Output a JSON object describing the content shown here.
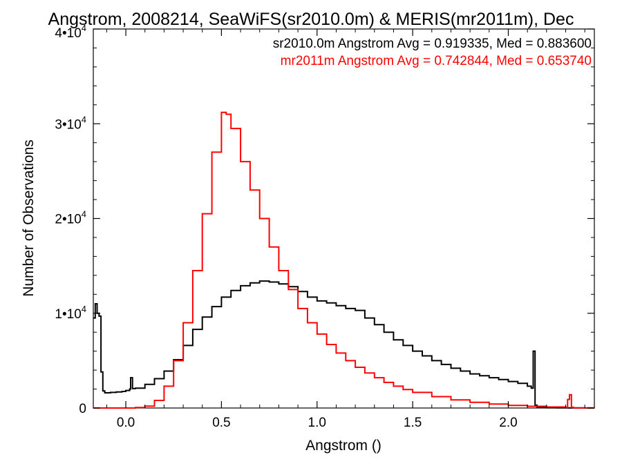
{
  "chart_data": {
    "type": "line",
    "title": "Angstrom, 2008214, SeaWiFS(sr2010.0m) & MERIS(mr2011m), Dec",
    "xlabel": "Angstrom ()",
    "ylabel": "Number of Observations",
    "xlim": [
      -0.17,
      2.45
    ],
    "ylim": [
      0,
      40000
    ],
    "x_ticks": [
      {
        "value": 0.0,
        "label": "0.0"
      },
      {
        "value": 0.5,
        "label": "0.5"
      },
      {
        "value": 1.0,
        "label": "1.0"
      },
      {
        "value": 1.5,
        "label": "1.5"
      },
      {
        "value": 2.0,
        "label": "2.0"
      }
    ],
    "y_ticks": [
      {
        "value": 0,
        "base": "0",
        "exp": ""
      },
      {
        "value": 10000,
        "base": "1•10",
        "exp": "4"
      },
      {
        "value": 20000,
        "base": "2•10",
        "exp": "4"
      },
      {
        "value": 30000,
        "base": "3•10",
        "exp": "4"
      },
      {
        "value": 40000,
        "base": "4•10",
        "exp": "4"
      }
    ],
    "grid": false,
    "legend_position": "top-right",
    "annotations": [
      {
        "text": "sr2010.0m Angstrom Avg = 0.919335, Med = 0.883600",
        "color": "#000000"
      },
      {
        "text": "mr2011m Angstrom Avg = 0.742844, Med = 0.653740",
        "color": "#ff0000"
      }
    ],
    "series": [
      {
        "color": "#000000",
        "x": [
          -0.17,
          -0.16,
          -0.15,
          -0.14,
          -0.13,
          -0.12,
          -0.11,
          -0.08,
          -0.05,
          -0.02,
          0.0,
          0.02,
          0.025,
          0.035,
          0.05,
          0.1,
          0.15,
          0.2,
          0.25,
          0.3,
          0.35,
          0.4,
          0.45,
          0.5,
          0.55,
          0.6,
          0.65,
          0.7,
          0.75,
          0.8,
          0.85,
          0.9,
          0.95,
          1.0,
          1.05,
          1.1,
          1.15,
          1.2,
          1.25,
          1.3,
          1.35,
          1.4,
          1.45,
          1.5,
          1.55,
          1.6,
          1.65,
          1.7,
          1.75,
          1.8,
          1.85,
          1.9,
          1.95,
          2.0,
          2.05,
          2.1,
          2.12,
          2.13,
          2.14,
          2.15,
          2.16,
          2.2,
          2.25,
          2.3,
          2.35,
          2.4,
          2.45
        ],
        "values": [
          9500,
          11000,
          10000,
          9700,
          3800,
          1800,
          1600,
          1650,
          1700,
          1750,
          1850,
          2000,
          3200,
          2050,
          2100,
          2500,
          3100,
          3900,
          5100,
          6600,
          8300,
          9600,
          10700,
          11700,
          12400,
          12900,
          13200,
          13400,
          13300,
          13100,
          12800,
          12300,
          11700,
          11300,
          11100,
          10800,
          10500,
          10300,
          9500,
          8800,
          8000,
          7200,
          6600,
          6000,
          5500,
          5000,
          4600,
          4200,
          3900,
          3600,
          3400,
          3200,
          3000,
          2800,
          2600,
          2300,
          2100,
          6000,
          300,
          100,
          50,
          30,
          20,
          10,
          5,
          0,
          0
        ]
      },
      {
        "color": "#ff0000",
        "x": [
          -0.17,
          0.05,
          0.1,
          0.15,
          0.2,
          0.25,
          0.3,
          0.35,
          0.4,
          0.45,
          0.5,
          0.525,
          0.55,
          0.6,
          0.65,
          0.7,
          0.75,
          0.8,
          0.85,
          0.9,
          0.95,
          1.0,
          1.05,
          1.1,
          1.15,
          1.2,
          1.25,
          1.3,
          1.35,
          1.4,
          1.45,
          1.5,
          1.6,
          1.7,
          1.8,
          1.9,
          2.0,
          2.1,
          2.2,
          2.3,
          2.31,
          2.32,
          2.33,
          2.34,
          2.45
        ],
        "values": [
          0,
          50,
          200,
          800,
          2300,
          5000,
          9000,
          14500,
          20500,
          27000,
          31200,
          31000,
          29500,
          26000,
          23000,
          20000,
          17000,
          14500,
          12500,
          10500,
          9000,
          7800,
          6700,
          5800,
          5000,
          4300,
          3700,
          3200,
          2700,
          2300,
          1950,
          1650,
          1200,
          850,
          600,
          420,
          280,
          180,
          110,
          60,
          900,
          1400,
          80,
          20,
          0
        ]
      }
    ]
  }
}
